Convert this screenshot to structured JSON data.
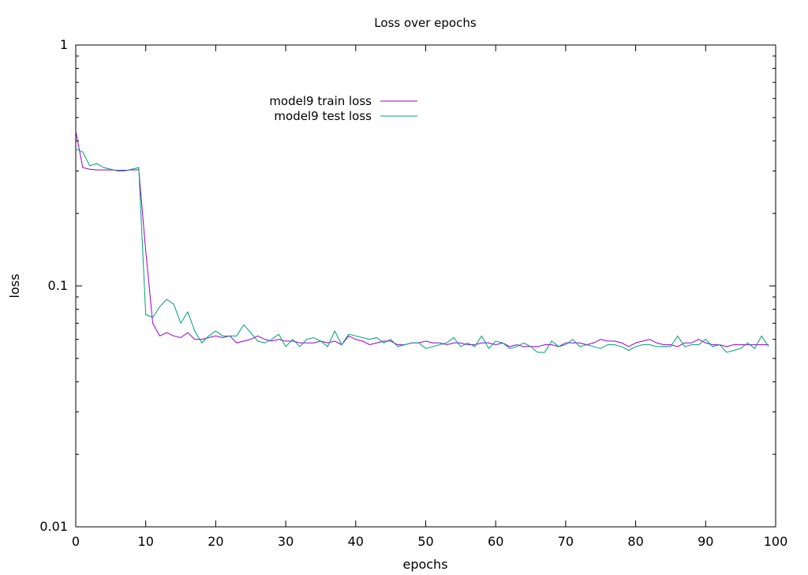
{
  "chart_data": {
    "type": "line",
    "title": "Loss over epochs",
    "xlabel": "epochs",
    "ylabel": "loss",
    "xlim": [
      0,
      100
    ],
    "ylim": [
      0.01,
      1
    ],
    "yscale": "log",
    "grid": false,
    "legend_position": "top-center",
    "x_ticks": [
      "0",
      "10",
      "20",
      "30",
      "40",
      "50",
      "60",
      "70",
      "80",
      "90",
      "100"
    ],
    "y_ticks": [
      "0.01",
      "0.1",
      "1"
    ],
    "x": [
      0,
      1,
      2,
      3,
      4,
      5,
      6,
      7,
      8,
      9,
      10,
      11,
      12,
      13,
      14,
      15,
      16,
      17,
      18,
      19,
      20,
      21,
      22,
      23,
      24,
      25,
      26,
      27,
      28,
      29,
      30,
      31,
      32,
      33,
      34,
      35,
      36,
      37,
      38,
      39,
      40,
      41,
      42,
      43,
      44,
      45,
      46,
      47,
      48,
      49,
      50,
      51,
      52,
      53,
      54,
      55,
      56,
      57,
      58,
      59,
      60,
      61,
      62,
      63,
      64,
      65,
      66,
      67,
      68,
      69,
      70,
      71,
      72,
      73,
      74,
      75,
      76,
      77,
      78,
      79,
      80,
      81,
      82,
      83,
      84,
      85,
      86,
      87,
      88,
      89,
      90,
      91,
      92,
      93,
      94,
      95,
      96,
      97,
      98,
      99
    ],
    "series": [
      {
        "name": "model9 train loss",
        "color": "#9400d3",
        "values": [
          0.44,
          0.31,
          0.305,
          0.303,
          0.303,
          0.303,
          0.302,
          0.302,
          0.303,
          0.304,
          0.14,
          0.07,
          0.062,
          0.064,
          0.062,
          0.061,
          0.064,
          0.06,
          0.06,
          0.061,
          0.062,
          0.061,
          0.062,
          0.058,
          0.059,
          0.06,
          0.062,
          0.06,
          0.059,
          0.06,
          0.059,
          0.059,
          0.058,
          0.058,
          0.058,
          0.059,
          0.058,
          0.059,
          0.057,
          0.062,
          0.06,
          0.059,
          0.057,
          0.058,
          0.059,
          0.059,
          0.057,
          0.057,
          0.058,
          0.058,
          0.059,
          0.058,
          0.058,
          0.057,
          0.058,
          0.058,
          0.057,
          0.057,
          0.058,
          0.058,
          0.057,
          0.058,
          0.056,
          0.057,
          0.056,
          0.056,
          0.056,
          0.057,
          0.057,
          0.056,
          0.058,
          0.058,
          0.058,
          0.057,
          0.058,
          0.06,
          0.059,
          0.059,
          0.058,
          0.056,
          0.058,
          0.059,
          0.06,
          0.058,
          0.057,
          0.057,
          0.056,
          0.058,
          0.058,
          0.06,
          0.058,
          0.057,
          0.057,
          0.056,
          0.057,
          0.057,
          0.057,
          0.057,
          0.057,
          0.057
        ]
      },
      {
        "name": "model9 test loss",
        "color": "#009e73",
        "values": [
          0.37,
          0.36,
          0.315,
          0.322,
          0.31,
          0.305,
          0.3,
          0.3,
          0.305,
          0.31,
          0.076,
          0.074,
          0.082,
          0.088,
          0.084,
          0.07,
          0.078,
          0.065,
          0.058,
          0.062,
          0.065,
          0.062,
          0.062,
          0.062,
          0.069,
          0.064,
          0.059,
          0.058,
          0.06,
          0.063,
          0.056,
          0.06,
          0.056,
          0.06,
          0.061,
          0.059,
          0.056,
          0.065,
          0.057,
          0.063,
          0.062,
          0.061,
          0.06,
          0.061,
          0.058,
          0.06,
          0.056,
          0.057,
          0.058,
          0.058,
          0.055,
          0.056,
          0.057,
          0.058,
          0.061,
          0.056,
          0.058,
          0.056,
          0.062,
          0.055,
          0.059,
          0.058,
          0.055,
          0.056,
          0.058,
          0.056,
          0.053,
          0.053,
          0.059,
          0.056,
          0.057,
          0.06,
          0.056,
          0.057,
          0.056,
          0.055,
          0.057,
          0.057,
          0.056,
          0.054,
          0.056,
          0.057,
          0.057,
          0.056,
          0.056,
          0.056,
          0.062,
          0.056,
          0.057,
          0.057,
          0.06,
          0.056,
          0.057,
          0.053,
          0.054,
          0.055,
          0.058,
          0.055,
          0.062,
          0.056
        ]
      }
    ]
  }
}
